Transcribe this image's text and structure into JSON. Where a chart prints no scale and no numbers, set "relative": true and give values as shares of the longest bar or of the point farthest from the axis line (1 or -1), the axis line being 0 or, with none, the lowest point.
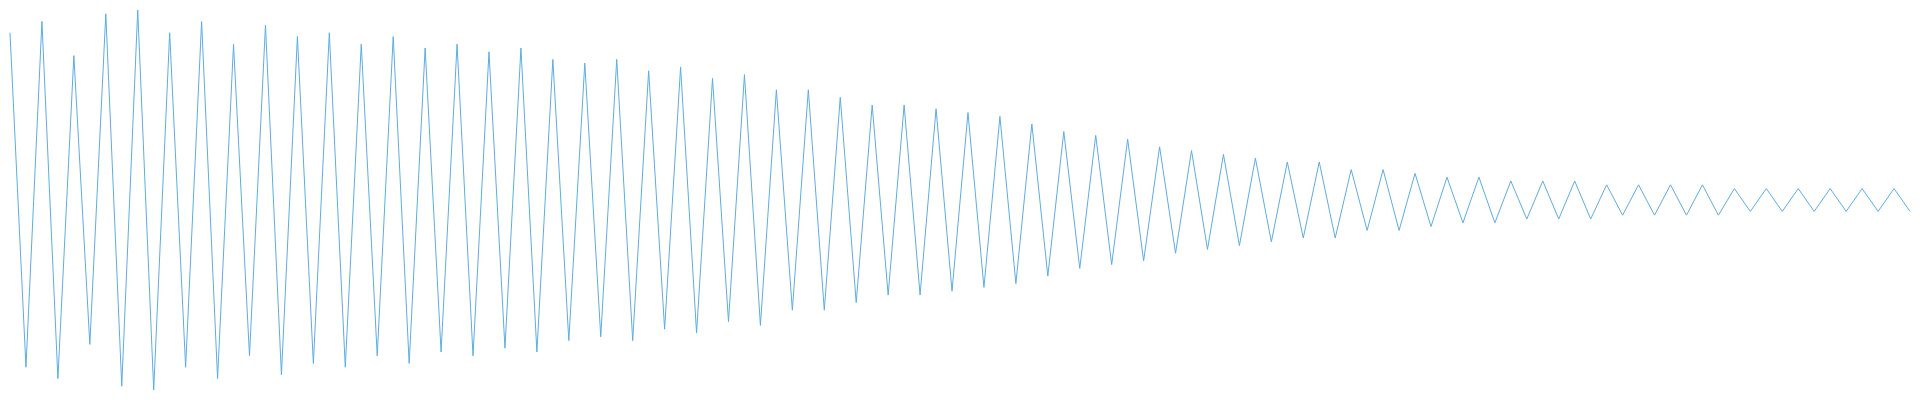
{
  "chart_data": {
    "type": "line",
    "relative": true,
    "categories": [
      null,
      null,
      null,
      null,
      null,
      null,
      null,
      null,
      null,
      null,
      null,
      null,
      null,
      null,
      null,
      null,
      null,
      null,
      null,
      null,
      null,
      null,
      null,
      null,
      null,
      null,
      null,
      null,
      null,
      null,
      null,
      null,
      null,
      null,
      null,
      null,
      null,
      null,
      null,
      null,
      null,
      null,
      null,
      null,
      null,
      null,
      null,
      null,
      null,
      null,
      null,
      null,
      null,
      null,
      null,
      null,
      null,
      null,
      null,
      null,
      null,
      null,
      null,
      null,
      null,
      null,
      null,
      null,
      null,
      null,
      null,
      null,
      null,
      null,
      null,
      null,
      null,
      null,
      null,
      null,
      null,
      null,
      null,
      null,
      null,
      null,
      null,
      null,
      null,
      null,
      null,
      null,
      null,
      null,
      null,
      null,
      null,
      null,
      null,
      null,
      null,
      null,
      null,
      null,
      null,
      null,
      null,
      null,
      null,
      null,
      null,
      null,
      null,
      null,
      null,
      null,
      null,
      null,
      null,
      null
    ],
    "series": [
      {
        "color": "#5dade2",
        "values": [
          0.94,
          0.06,
          0.97,
          0.03,
          0.88,
          0.12,
          0.99,
          0.01,
          1,
          0,
          0.94,
          0.06,
          0.97,
          0.03,
          0.91,
          0.09,
          0.96,
          0.04,
          0.93,
          0.07,
          0.94,
          0.06,
          0.91,
          0.09,
          0.93,
          0.07,
          0.9,
          0.1,
          0.91,
          0.09,
          0.89,
          0.11,
          0.9,
          0.1,
          0.87,
          0.13,
          0.86,
          0.14,
          0.87,
          0.13,
          0.84,
          0.16,
          0.85,
          0.15,
          0.82,
          0.18,
          0.83,
          0.17,
          0.79,
          0.21,
          0.79,
          0.21,
          0.77,
          0.23,
          0.75,
          0.25,
          0.75,
          0.25,
          0.74,
          0.26,
          0.73,
          0.27,
          0.72,
          0.28,
          0.7,
          0.3,
          0.68,
          0.32,
          0.67,
          0.33,
          0.66,
          0.34,
          0.64,
          0.36,
          0.63,
          0.37,
          0.62,
          0.38,
          0.61,
          0.39,
          0.6,
          0.4,
          0.6,
          0.4,
          0.58,
          0.42,
          0.58,
          0.42,
          0.57,
          0.43,
          0.56,
          0.44,
          0.56,
          0.44,
          0.55,
          0.45,
          0.55,
          0.45,
          0.55,
          0.45,
          0.54,
          0.46,
          0.54,
          0.46,
          0.54,
          0.46,
          0.54,
          0.46,
          0.53,
          0.47,
          0.53,
          0.47,
          0.53,
          0.47,
          0.53,
          0.47,
          0.53,
          0.47,
          0.53,
          0.47
        ]
      }
    ]
  }
}
